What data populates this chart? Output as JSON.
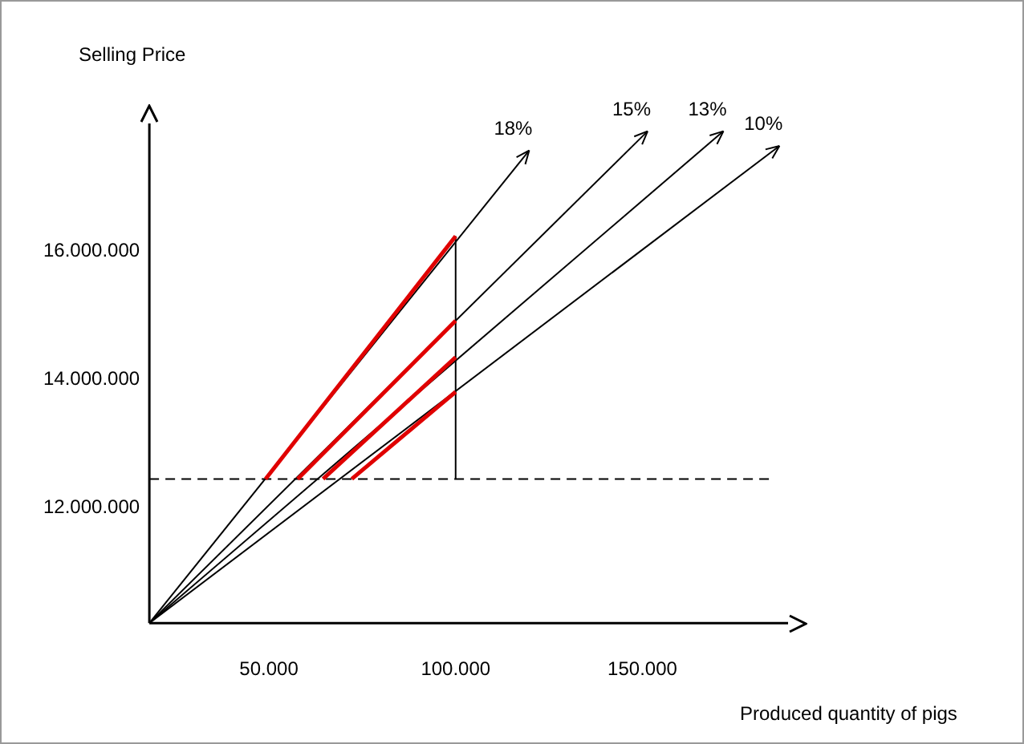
{
  "chart_data": {
    "type": "line",
    "xlabel": "Produced quantity of pigs",
    "ylabel": "Selling Price",
    "xlim": [
      18000,
      189000
    ],
    "ylim": [
      10200000,
      18000000
    ],
    "xticks": [
      {
        "value": 50000,
        "label": "50.000"
      },
      {
        "value": 100000,
        "label": "100.000"
      },
      {
        "value": 150000,
        "label": "150.000"
      }
    ],
    "yticks": [
      {
        "value": 12000000,
        "label": "12.000.000"
      },
      {
        "value": 14000000,
        "label": "14.000.000"
      },
      {
        "value": 16000000,
        "label": "16.000.000"
      }
    ],
    "grid": false,
    "legend": false,
    "marker": "none",
    "line_style": "solid",
    "ref_lines": [
      {
        "axis": "y",
        "value": 12450000,
        "color": "#000000",
        "line_style": "dashed"
      }
    ],
    "series": [
      {
        "name": "18%",
        "color": "#000000",
        "x": [
          18000,
          119700
        ],
        "values": [
          10200000,
          17580000
        ]
      },
      {
        "name": "15%",
        "color": "#000000",
        "x": [
          18000,
          151400
        ],
        "values": [
          10200000,
          17880000
        ]
      },
      {
        "name": "13%",
        "color": "#000000",
        "x": [
          18000,
          171700
        ],
        "values": [
          10200000,
          17880000
        ]
      },
      {
        "name": "10%",
        "color": "#000000",
        "x": [
          18000,
          186700
        ],
        "values": [
          10200000,
          17650000
        ]
      },
      {
        "color": "#e00000",
        "x": [
          49100,
          100000
        ],
        "values": [
          12450000,
          16240000
        ]
      },
      {
        "color": "#e00000",
        "x": [
          57700,
          100000
        ],
        "values": [
          12450000,
          14920000
        ]
      },
      {
        "color": "#e00000",
        "x": [
          64500,
          100000
        ],
        "values": [
          12450000,
          14350000
        ]
      },
      {
        "color": "#e00000",
        "x": [
          72200,
          100000
        ],
        "values": [
          12450000,
          13810000
        ]
      },
      {
        "color": "#000000",
        "x": [
          100000,
          100000
        ],
        "values": [
          12450000,
          16240000
        ]
      }
    ]
  }
}
